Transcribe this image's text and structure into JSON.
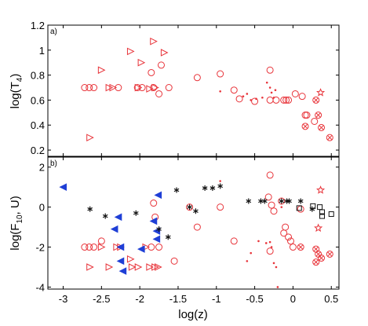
{
  "chart_data": [
    {
      "type": "scatter",
      "panel_label": "a)",
      "xlabel": "",
      "ylabel": "log(T",
      "ylabel_sub": "4",
      "ylabel_close": ")",
      "xlim": [
        -3.2,
        0.6
      ],
      "ylim": [
        0.15,
        1.2
      ],
      "yticks": [
        0.2,
        0.4,
        0.6,
        0.8,
        1.0,
        1.2
      ],
      "ytick_labels": [
        "0.2",
        "0.4",
        "0.6",
        "0.8",
        "1",
        "1.2"
      ],
      "series": [
        {
          "marker": "circle",
          "points": [
            [
              -2.72,
              0.7
            ],
            [
              -2.66,
              0.7
            ],
            [
              -2.6,
              0.7
            ],
            [
              -2.28,
              0.7
            ],
            [
              -2.03,
              0.7
            ],
            [
              -1.97,
              0.7
            ],
            [
              -1.82,
              0.7
            ],
            [
              -1.75,
              0.65
            ],
            [
              -1.85,
              0.82
            ],
            [
              -1.62,
              0.7
            ],
            [
              -1.72,
              0.88
            ],
            [
              -1.25,
              0.78
            ],
            [
              -0.95,
              0.81
            ],
            [
              -0.77,
              0.68
            ],
            [
              -0.7,
              0.61
            ],
            [
              -0.5,
              0.59
            ],
            [
              -0.3,
              0.84
            ],
            [
              -0.3,
              0.6
            ],
            [
              -0.22,
              0.6
            ],
            [
              -0.12,
              0.6
            ],
            [
              -0.09,
              0.6
            ],
            [
              -0.06,
              0.6
            ],
            [
              0.03,
              0.65
            ],
            [
              0.12,
              0.63
            ],
            [
              0.16,
              0.48
            ],
            [
              0.18,
              0.48
            ],
            [
              0.28,
              0.43
            ]
          ]
        },
        {
          "marker": "triangle-right",
          "points": [
            [
              -2.65,
              0.3
            ],
            [
              -2.5,
              0.84
            ],
            [
              -2.4,
              0.7
            ],
            [
              -2.35,
              0.7
            ],
            [
              -2.12,
              0.99
            ],
            [
              -2.02,
              0.7
            ],
            [
              -1.98,
              0.9
            ],
            [
              -1.87,
              0.69
            ],
            [
              -1.82,
              1.07
            ],
            [
              -1.8,
              0.7
            ],
            [
              -1.68,
              0.98
            ]
          ]
        },
        {
          "marker": "dot",
          "points": [
            [
              -0.95,
              0.67
            ],
            [
              -0.65,
              0.63
            ],
            [
              -0.6,
              0.65
            ],
            [
              -0.55,
              0.6
            ],
            [
              -0.48,
              0.61
            ],
            [
              -0.4,
              0.62
            ],
            [
              -0.34,
              0.74
            ],
            [
              -0.3,
              0.7
            ],
            [
              -0.28,
              0.66
            ],
            [
              -0.25,
              0.62
            ],
            [
              -0.23,
              0.68
            ]
          ]
        },
        {
          "marker": "circle-x",
          "points": [
            [
              0.3,
              0.6
            ],
            [
              0.33,
              0.48
            ],
            [
              0.37,
              0.38
            ],
            [
              0.48,
              0.3
            ],
            [
              0.16,
              0.39
            ]
          ]
        },
        {
          "marker": "star",
          "points": [
            [
              0.36,
              0.66
            ]
          ]
        }
      ]
    },
    {
      "type": "scatter",
      "panel_label": "b)",
      "xlabel": "log(z)",
      "ylabel": "log(F",
      "ylabel_sub": "10",
      "ylabel_close": ", U)",
      "xlim": [
        -3.2,
        0.6
      ],
      "ylim": [
        -4.1,
        2.5
      ],
      "xticks": [
        -3,
        -2.5,
        -2,
        -1.5,
        -1,
        -0.5,
        0,
        0.5
      ],
      "xtick_labels": [
        "-3",
        "-2.5",
        "-2",
        "-1.5",
        "-1",
        "-0.5",
        "0",
        "0.5"
      ],
      "yticks": [
        -4,
        -2,
        0,
        2
      ],
      "ytick_labels": [
        "-4",
        "-2",
        "0",
        "2"
      ],
      "series": [
        {
          "marker": "circle",
          "points": [
            [
              -2.72,
              -2.0
            ],
            [
              -2.66,
              -2.0
            ],
            [
              -2.6,
              -2.0
            ],
            [
              -2.5,
              -1.7
            ],
            [
              -1.82,
              0.2
            ],
            [
              -1.8,
              -0.5
            ],
            [
              -1.85,
              -2.0
            ],
            [
              -1.75,
              -2.0
            ],
            [
              -1.55,
              -2.7
            ],
            [
              -1.35,
              0.0
            ],
            [
              -1.25,
              -1.0
            ],
            [
              -0.95,
              0.0
            ],
            [
              -0.77,
              -1.7
            ],
            [
              -0.3,
              1.6
            ],
            [
              -0.32,
              0.5
            ],
            [
              -0.28,
              0.1
            ],
            [
              -0.25,
              -0.2
            ],
            [
              -0.15,
              0.3
            ],
            [
              -0.1,
              -1.0
            ],
            [
              -0.12,
              -1.3
            ],
            [
              -0.06,
              -1.5
            ],
            [
              -0.03,
              -1.7
            ],
            [
              0.0,
              -2.0
            ],
            [
              -0.3,
              -2.2
            ],
            [
              0.1,
              -0.1
            ]
          ]
        },
        {
          "marker": "triangle-right",
          "points": [
            [
              -2.65,
              -3.0
            ],
            [
              -2.5,
              -2.0
            ],
            [
              -2.4,
              -3.0
            ],
            [
              -2.3,
              -2.0
            ],
            [
              -2.25,
              -2.0
            ],
            [
              -2.12,
              -2.6
            ],
            [
              -2.1,
              -3.0
            ],
            [
              -2.02,
              -3.0
            ],
            [
              -1.92,
              -2.0
            ],
            [
              -1.87,
              -3.0
            ],
            [
              -1.8,
              -3.0
            ],
            [
              -1.76,
              -3.0
            ]
          ]
        },
        {
          "marker": "triangle-left",
          "points": [
            [
              -3.0,
              1.0
            ],
            [
              -2.33,
              -1.1
            ],
            [
              -2.28,
              -0.5
            ],
            [
              -2.25,
              -2.0
            ],
            [
              -2.25,
              -2.7
            ],
            [
              -2.22,
              -3.2
            ],
            [
              -1.98,
              -2.1
            ],
            [
              -1.82,
              -0.7
            ],
            [
              -1.78,
              -1.2
            ],
            [
              -1.78,
              -1.6
            ],
            [
              -1.76,
              0.6
            ]
          ]
        },
        {
          "marker": "asterisk",
          "points": [
            [
              -2.65,
              -0.1
            ],
            [
              -2.45,
              -0.45
            ],
            [
              -2.05,
              -0.3
            ],
            [
              -1.75,
              -1.1
            ],
            [
              -1.63,
              -1.5
            ],
            [
              -1.52,
              0.85
            ],
            [
              -1.35,
              0.0
            ],
            [
              -1.27,
              -0.2
            ],
            [
              -1.15,
              0.95
            ],
            [
              -1.05,
              0.95
            ],
            [
              -0.95,
              1.05
            ],
            [
              -0.58,
              0.3
            ],
            [
              -0.42,
              0.3
            ],
            [
              -0.37,
              0.3
            ],
            [
              -0.15,
              0.3
            ],
            [
              -0.08,
              0.3
            ],
            [
              -0.05,
              0.3
            ],
            [
              0.1,
              0.3
            ],
            [
              0.25,
              -0.1
            ]
          ]
        },
        {
          "marker": "dot",
          "points": [
            [
              -0.95,
              1.3
            ],
            [
              -0.6,
              -2.7
            ],
            [
              -0.55,
              -2.3
            ],
            [
              -0.45,
              -1.7
            ],
            [
              -0.35,
              -1.8
            ],
            [
              -0.3,
              -1.75
            ],
            [
              -0.28,
              -2.0
            ],
            [
              -0.25,
              -2.8
            ],
            [
              -0.22,
              -3.0
            ],
            [
              -0.2,
              -4.0
            ],
            [
              -0.15,
              0.0
            ]
          ]
        },
        {
          "marker": "square",
          "points": [
            [
              0.08,
              -0.05
            ],
            [
              0.26,
              0.05
            ],
            [
              0.35,
              0.0
            ],
            [
              0.38,
              -0.25
            ],
            [
              0.38,
              -0.45
            ],
            [
              0.5,
              -0.35
            ]
          ]
        },
        {
          "marker": "circle-x",
          "points": [
            [
              0.1,
              -2.0
            ],
            [
              0.3,
              -2.1
            ],
            [
              0.33,
              -2.35
            ],
            [
              0.37,
              -2.55
            ],
            [
              0.3,
              -2.75
            ],
            [
              0.48,
              -2.35
            ]
          ]
        },
        {
          "marker": "star",
          "points": [
            [
              0.36,
              0.85
            ],
            [
              0.33,
              -1.05
            ]
          ]
        }
      ]
    }
  ]
}
